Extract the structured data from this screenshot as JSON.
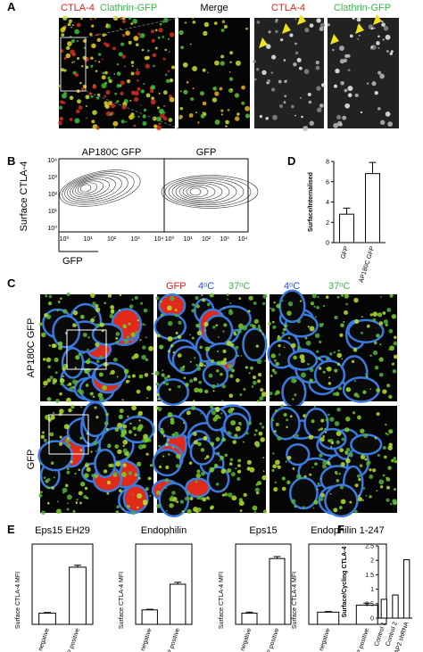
{
  "figure": {
    "panel_labels": [
      "A",
      "B",
      "C",
      "D",
      "E",
      "F"
    ],
    "A": {
      "titles": [
        "CTLA-4",
        "Clathrin-GFP",
        "Merge",
        "CTLA-4",
        "Clathrin-GFP"
      ]
    },
    "B": {
      "titles": [
        "AP180C GFP",
        "GFP"
      ],
      "y_label": "Surface CTLA-4",
      "x_label": "GFP",
      "ticks": [
        "10⁰",
        "10¹",
        "10²",
        "10³",
        "10⁴"
      ]
    },
    "C": {
      "row_labels": [
        "AP180C GFP",
        "GFP"
      ],
      "headers": [
        "GFP",
        "4ᵒC",
        "37ᵒC",
        "4ᵒC",
        "37ᵒC"
      ]
    }
  },
  "chart_data": [
    {
      "type": "bar",
      "y_label": "Surface/Internalised",
      "categories": [
        "GFP",
        "AP180C GFP"
      ],
      "values": [
        2.8,
        6.8
      ],
      "errors": [
        0.6,
        1.1
      ],
      "color": "#ffffff",
      "ylim": [
        0,
        8
      ],
      "yticks": [
        0,
        2,
        4,
        6,
        8
      ]
    },
    {
      "type": "bar",
      "title": "Eps15 EH29",
      "y_label": "Surface CTLA-4 MFI",
      "categories": [
        "RFP negative",
        "RFP positive"
      ],
      "values": [
        35,
        178
      ],
      "errors": [
        2,
        6
      ],
      "color": "#ffffff",
      "ylim": [
        0,
        250
      ],
      "frame": true
    },
    {
      "type": "bar",
      "title": "Endophilin",
      "y_label": "Surface CTLA-4 MFI",
      "categories": [
        "RFP negative",
        "RFP positive"
      ],
      "values": [
        45,
        125
      ],
      "errors": [
        2,
        6
      ],
      "color": "#ffffff",
      "ylim": [
        0,
        250
      ],
      "frame": true
    },
    {
      "type": "bar",
      "title": "Eps15",
      "y_label": "Surface CTLA-4 MFI",
      "categories": [
        "RFP negative",
        "RFP positive"
      ],
      "values": [
        35,
        205
      ],
      "errors": [
        3,
        6
      ],
      "color": "#ffffff",
      "ylim": [
        0,
        250
      ],
      "frame": true
    },
    {
      "type": "bar",
      "title": "Endophilin 1-247",
      "y_label": "Surface CTLA-4 MFI",
      "categories": [
        "RFP negative",
        "RFP positive"
      ],
      "values": [
        38,
        60
      ],
      "errors": [
        2,
        6
      ],
      "color": "#ffffff",
      "ylim": [
        0,
        250
      ],
      "frame": true
    },
    {
      "type": "bar",
      "y_label": "Surface/Cycling CTLA-4",
      "categories": [
        "Control 1",
        "Control 2",
        "AP2 shRNA"
      ],
      "values": [
        0.65,
        0.8,
        2.02
      ],
      "color": "#ffffff",
      "ylim": [
        0,
        2.5
      ],
      "yticks": [
        0,
        0.5,
        1,
        1.5,
        2,
        2.5
      ]
    }
  ]
}
